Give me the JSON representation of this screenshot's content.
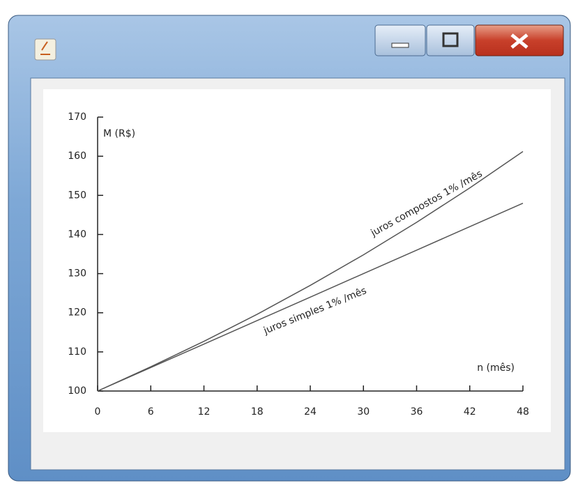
{
  "chart_data": {
    "type": "line",
    "x": [
      0,
      6,
      12,
      18,
      24,
      30,
      36,
      42,
      48
    ],
    "series": [
      {
        "name": "juros compostos 1% /mês",
        "color": "#555555",
        "values": [
          100,
          106.2,
          112.7,
          119.6,
          127,
          134.8,
          143.1,
          151.9,
          161.2
        ]
      },
      {
        "name": "juros simples 1% /mês",
        "color": "#555555",
        "values": [
          100,
          106,
          112,
          118,
          124,
          130,
          136,
          142,
          148
        ]
      }
    ],
    "y_label": "M (R$)",
    "x_label": "n (mês)",
    "xlim": [
      0,
      48
    ],
    "xticks": [
      0,
      6,
      12,
      18,
      24,
      30,
      36,
      42,
      48
    ],
    "ylim": [
      100,
      170
    ],
    "yticks": [
      100,
      110,
      120,
      130,
      140,
      150,
      160,
      170
    ]
  }
}
